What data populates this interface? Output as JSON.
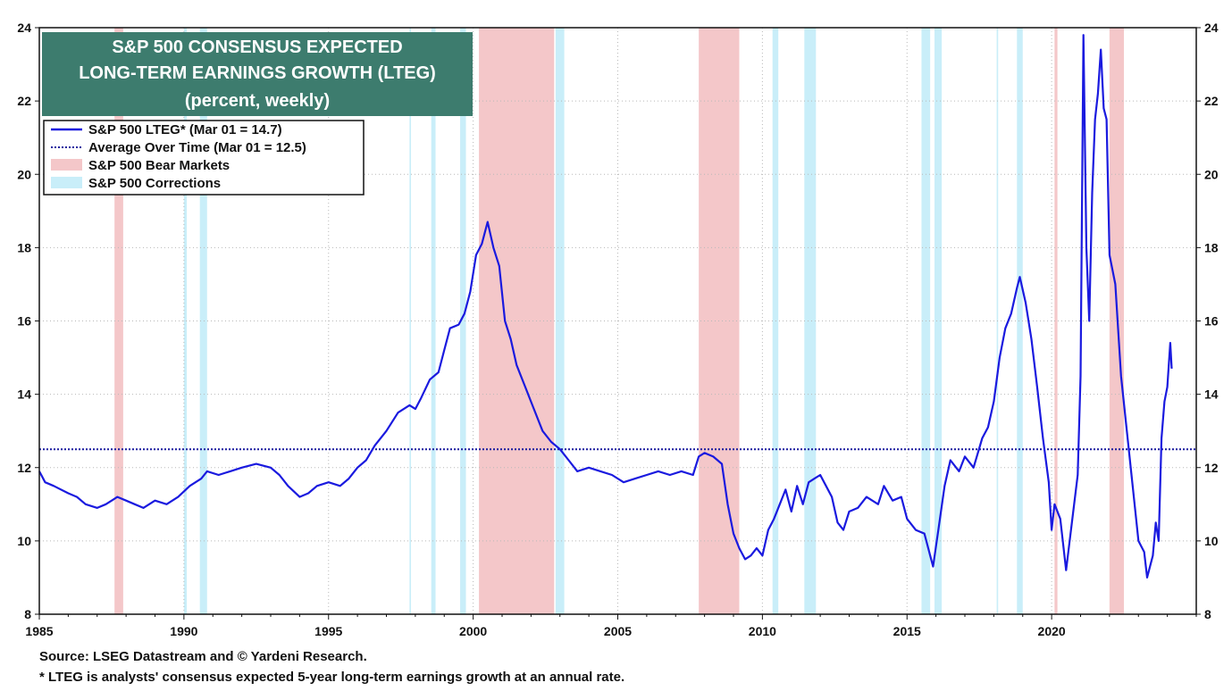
{
  "chart_data": {
    "type": "line",
    "title_lines": [
      "S&P 500 CONSENSUS EXPECTED",
      "LONG-TERM EARNINGS GROWTH (LTEG)",
      "(percent, weekly)"
    ],
    "xlim": [
      1985,
      2025
    ],
    "ylim": [
      8,
      24
    ],
    "y_ticks": [
      8,
      10,
      12,
      14,
      16,
      18,
      20,
      22,
      24
    ],
    "x_ticks": [
      1985,
      1990,
      1995,
      2000,
      2005,
      2010,
      2015,
      2020
    ],
    "grid": true,
    "legend_position": "top-left",
    "legend": [
      {
        "label": "S&P 500 LTEG* (Mar 01 = 14.7)",
        "style": "line",
        "color": "#1a1adf"
      },
      {
        "label": "Average Over Time (Mar 01 = 12.5)",
        "style": "dotted",
        "color": "#1a1a9f"
      },
      {
        "label": "S&P 500 Bear Markets",
        "style": "box",
        "color": "#f4c7c9"
      },
      {
        "label": "S&P 500 Corrections",
        "style": "box",
        "color": "#c9eef9"
      }
    ],
    "average_value": 12.5,
    "bear_markets": [
      [
        1987.6,
        1987.9
      ],
      [
        2000.2,
        2002.8
      ],
      [
        2007.8,
        2009.2
      ],
      [
        2020.1,
        2020.2
      ],
      [
        2022.0,
        2022.5
      ]
    ],
    "corrections": [
      [
        1990.0,
        1990.1
      ],
      [
        1990.55,
        1990.8
      ],
      [
        1997.8,
        1997.85
      ],
      [
        1998.55,
        1998.7
      ],
      [
        1999.55,
        1999.75
      ],
      [
        2002.85,
        2003.15
      ],
      [
        2010.35,
        2010.55
      ],
      [
        2011.45,
        2011.85
      ],
      [
        2015.5,
        2015.8
      ],
      [
        2015.95,
        2016.2
      ],
      [
        2018.1,
        2018.15
      ],
      [
        2018.8,
        2019.0
      ]
    ],
    "series": [
      {
        "name": "S&P 500 LTEG*",
        "x": [
          1985.0,
          1985.2,
          1985.5,
          1986.0,
          1986.3,
          1986.6,
          1987.0,
          1987.3,
          1987.7,
          1988.0,
          1988.3,
          1988.6,
          1989.0,
          1989.4,
          1989.8,
          1990.2,
          1990.6,
          1990.8,
          1991.2,
          1991.6,
          1992.0,
          1992.5,
          1993.0,
          1993.3,
          1993.6,
          1994.0,
          1994.3,
          1994.6,
          1995.0,
          1995.4,
          1995.7,
          1996.0,
          1996.3,
          1996.6,
          1997.0,
          1997.4,
          1997.8,
          1998.0,
          1998.2,
          1998.5,
          1998.8,
          1999.0,
          1999.2,
          1999.5,
          1999.7,
          1999.9,
          2000.1,
          2000.3,
          2000.5,
          2000.7,
          2000.9,
          2001.1,
          2001.3,
          2001.5,
          2001.8,
          2002.1,
          2002.4,
          2002.7,
          2003.0,
          2003.3,
          2003.6,
          2004.0,
          2004.4,
          2004.8,
          2005.2,
          2005.6,
          2006.0,
          2006.4,
          2006.8,
          2007.2,
          2007.6,
          2007.8,
          2008.0,
          2008.3,
          2008.6,
          2008.8,
          2009.0,
          2009.2,
          2009.4,
          2009.6,
          2009.8,
          2010.0,
          2010.2,
          2010.4,
          2010.6,
          2010.8,
          2011.0,
          2011.2,
          2011.4,
          2011.6,
          2011.8,
          2012.0,
          2012.2,
          2012.4,
          2012.6,
          2012.8,
          2013.0,
          2013.3,
          2013.6,
          2014.0,
          2014.2,
          2014.5,
          2014.8,
          2015.0,
          2015.3,
          2015.6,
          2015.9,
          2016.1,
          2016.3,
          2016.5,
          2016.8,
          2017.0,
          2017.3,
          2017.6,
          2017.8,
          2018.0,
          2018.2,
          2018.4,
          2018.6,
          2018.8,
          2018.9,
          2019.1,
          2019.3,
          2019.5,
          2019.7,
          2019.9,
          2020.0,
          2020.1,
          2020.3,
          2020.5,
          2020.7,
          2020.9,
          2021.0,
          2021.1,
          2021.2,
          2021.3,
          2021.4,
          2021.5,
          2021.6,
          2021.7,
          2021.8,
          2021.9,
          2022.0,
          2022.2,
          2022.4,
          2022.6,
          2022.8,
          2023.0,
          2023.2,
          2023.3,
          2023.5,
          2023.6,
          2023.7,
          2023.8,
          2023.9,
          2024.0,
          2024.1,
          2024.15
        ],
        "values": [
          11.9,
          11.6,
          11.5,
          11.3,
          11.2,
          11.0,
          10.9,
          11.0,
          11.2,
          11.1,
          11.0,
          10.9,
          11.1,
          11.0,
          11.2,
          11.5,
          11.7,
          11.9,
          11.8,
          11.9,
          12.0,
          12.1,
          12.0,
          11.8,
          11.5,
          11.2,
          11.3,
          11.5,
          11.6,
          11.5,
          11.7,
          12.0,
          12.2,
          12.6,
          13.0,
          13.5,
          13.7,
          13.6,
          13.9,
          14.4,
          14.6,
          15.2,
          15.8,
          15.9,
          16.2,
          16.8,
          17.8,
          18.1,
          18.7,
          18.0,
          17.5,
          16.0,
          15.5,
          14.8,
          14.2,
          13.6,
          13.0,
          12.7,
          12.5,
          12.2,
          11.9,
          12.0,
          11.9,
          11.8,
          11.6,
          11.7,
          11.8,
          11.9,
          11.8,
          11.9,
          11.8,
          12.3,
          12.4,
          12.3,
          12.1,
          11.0,
          10.2,
          9.8,
          9.5,
          9.6,
          9.8,
          9.6,
          10.3,
          10.6,
          11.0,
          11.4,
          10.8,
          11.5,
          11.0,
          11.6,
          11.7,
          11.8,
          11.5,
          11.2,
          10.5,
          10.3,
          10.8,
          10.9,
          11.2,
          11.0,
          11.5,
          11.1,
          11.2,
          10.6,
          10.3,
          10.2,
          9.3,
          10.4,
          11.5,
          12.2,
          11.9,
          12.3,
          12.0,
          12.8,
          13.1,
          13.8,
          15.0,
          15.8,
          16.2,
          16.9,
          17.2,
          16.5,
          15.5,
          14.2,
          12.8,
          11.6,
          10.3,
          11.0,
          10.6,
          9.2,
          10.5,
          11.8,
          14.5,
          23.8,
          18.0,
          16.0,
          19.5,
          21.5,
          22.2,
          23.4,
          21.8,
          21.5,
          17.8,
          17.0,
          14.5,
          13.0,
          11.5,
          10.0,
          9.7,
          9.0,
          9.6,
          10.5,
          10.0,
          12.8,
          13.8,
          14.2,
          15.4,
          14.7
        ]
      }
    ],
    "source_note": "Source: LSEG Datastream and © Yardeni Research.",
    "footnote": "* LTEG is analysts' consensus expected 5-year long-term earnings growth at an annual rate."
  }
}
